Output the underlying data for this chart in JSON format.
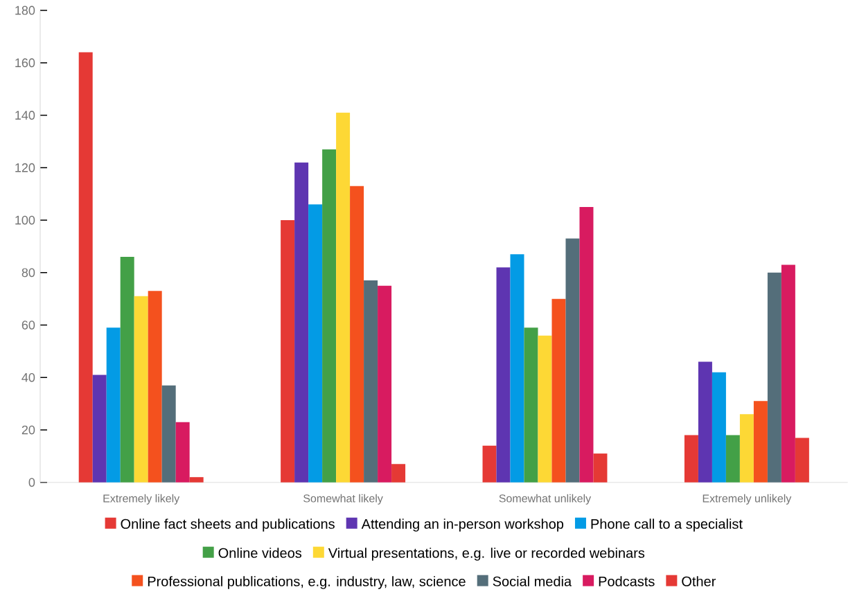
{
  "chart_data": {
    "type": "bar",
    "categories": [
      "Extremely likely",
      "Somewhat likely",
      "Somewhat unlikely",
      "Extremely unlikely"
    ],
    "series": [
      {
        "name": "Online fact sheets and publications",
        "color": "#e53935",
        "values": [
          164,
          100,
          14,
          18
        ]
      },
      {
        "name": "Attending an in-person workshop",
        "color": "#5e35b1",
        "values": [
          41,
          122,
          82,
          46
        ]
      },
      {
        "name": "Phone call to a specialist",
        "color": "#039be5",
        "values": [
          59,
          106,
          87,
          42
        ]
      },
      {
        "name": "Online videos",
        "color": "#43a047",
        "values": [
          86,
          127,
          59,
          18
        ]
      },
      {
        "name": "Virtual presentations, e.g. live or recorded webinars",
        "color": "#fdd835",
        "values": [
          71,
          141,
          56,
          26
        ]
      },
      {
        "name": "Professional publications, e.g. industry, law, science",
        "color": "#f4511e",
        "values": [
          73,
          113,
          70,
          31
        ]
      },
      {
        "name": "Social media",
        "color": "#546e7a",
        "values": [
          37,
          77,
          93,
          80
        ]
      },
      {
        "name": "Podcasts",
        "color": "#d81b60",
        "values": [
          23,
          75,
          105,
          83
        ]
      },
      {
        "name": "Other",
        "color": "#e53935",
        "values": [
          2,
          7,
          11,
          17
        ]
      }
    ],
    "ylim": [
      0,
      180
    ],
    "yticks": [
      0,
      20,
      40,
      60,
      80,
      100,
      120,
      140,
      160,
      180
    ],
    "legend": "bottom"
  }
}
